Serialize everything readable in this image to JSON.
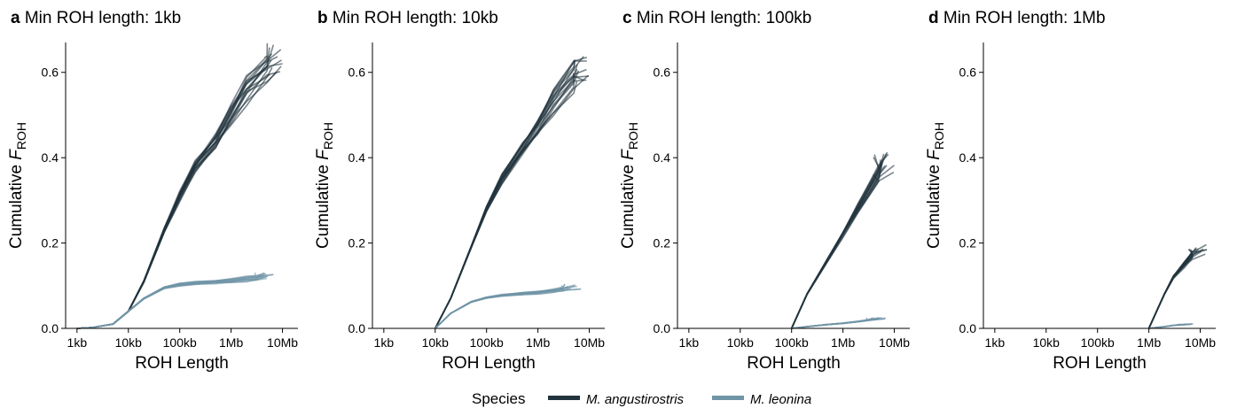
{
  "legend": {
    "title": "Species",
    "entries": [
      {
        "label": "M. angustirostris",
        "color": "#22343d"
      },
      {
        "label": "M. leonina",
        "color": "#6f95a6"
      }
    ]
  },
  "chart_data": [
    {
      "type": "line",
      "letter": "a",
      "title": "Min ROH length: 1kb",
      "xlabel": "ROH Length",
      "ylabel": "Cumulative F",
      "ylabel_sub": "ROH",
      "x_scale": "log10",
      "xlim": [
        600,
        20000000
      ],
      "ylim": [
        0,
        0.67
      ],
      "x_ticks": [
        1000,
        10000,
        100000,
        1000000,
        10000000
      ],
      "x_tick_labels": [
        "1kb",
        "10kb",
        "100kb",
        "1Mb",
        "10Mb"
      ],
      "y_ticks": [
        0.0,
        0.2,
        0.4,
        0.6
      ],
      "y_tick_labels": [
        "0.0",
        "0.2",
        "0.4",
        "0.6"
      ],
      "series": [
        {
          "species": "M. angustirostris",
          "color": "#22343d",
          "x": [
            1000,
            2000,
            5000,
            10000,
            20000,
            50000,
            100000,
            200000,
            500000,
            1000000,
            2000000,
            5000000,
            7000000
          ],
          "y": [
            0.0,
            0.002,
            0.01,
            0.04,
            0.11,
            0.23,
            0.31,
            0.38,
            0.44,
            0.5,
            0.56,
            0.61,
            0.63
          ],
          "replicates": 16
        },
        {
          "species": "M. leonina",
          "color": "#6f95a6",
          "x": [
            1000,
            2000,
            5000,
            10000,
            20000,
            50000,
            100000,
            200000,
            500000,
            1000000,
            2000000,
            3000000,
            5000000
          ],
          "y": [
            0.0,
            0.002,
            0.01,
            0.04,
            0.07,
            0.095,
            0.102,
            0.106,
            0.109,
            0.111,
            0.115,
            0.118,
            0.125
          ],
          "replicates": 12
        }
      ]
    },
    {
      "type": "line",
      "letter": "b",
      "title": "Min ROH length: 10kb",
      "xlabel": "ROH Length",
      "ylabel": "Cumulative F",
      "ylabel_sub": "ROH",
      "x_scale": "log10",
      "xlim": [
        600,
        20000000
      ],
      "ylim": [
        0,
        0.67
      ],
      "x_ticks": [
        1000,
        10000,
        100000,
        1000000,
        10000000
      ],
      "x_tick_labels": [
        "1kb",
        "10kb",
        "100kb",
        "1Mb",
        "10Mb"
      ],
      "y_ticks": [
        0.0,
        0.2,
        0.4,
        0.6
      ],
      "y_tick_labels": [
        "0.0",
        "0.2",
        "0.4",
        "0.6"
      ],
      "series": [
        {
          "species": "M. angustirostris",
          "color": "#22343d",
          "x": [
            10000,
            20000,
            50000,
            100000,
            200000,
            500000,
            1000000,
            2000000,
            5000000,
            7000000
          ],
          "y": [
            0.0,
            0.07,
            0.19,
            0.28,
            0.35,
            0.42,
            0.47,
            0.53,
            0.59,
            0.605
          ],
          "replicates": 16
        },
        {
          "species": "M. leonina",
          "color": "#6f95a6",
          "x": [
            10000,
            20000,
            50000,
            100000,
            200000,
            500000,
            1000000,
            2000000,
            3000000,
            5000000
          ],
          "y": [
            0.0,
            0.035,
            0.062,
            0.072,
            0.077,
            0.081,
            0.084,
            0.088,
            0.091,
            0.097
          ],
          "replicates": 12
        }
      ]
    },
    {
      "type": "line",
      "letter": "c",
      "title": "Min ROH length: 100kb",
      "xlabel": "ROH Length",
      "ylabel": "Cumulative F",
      "ylabel_sub": "ROH",
      "x_scale": "log10",
      "xlim": [
        600,
        20000000
      ],
      "ylim": [
        0,
        0.67
      ],
      "x_ticks": [
        1000,
        10000,
        100000,
        1000000,
        10000000
      ],
      "x_tick_labels": [
        "1kb",
        "10kb",
        "100kb",
        "1Mb",
        "10Mb"
      ],
      "y_ticks": [
        0.0,
        0.2,
        0.4,
        0.6
      ],
      "y_tick_labels": [
        "0.0",
        "0.2",
        "0.4",
        "0.6"
      ],
      "series": [
        {
          "species": "M. angustirostris",
          "color": "#22343d",
          "x": [
            100000,
            200000,
            500000,
            1000000,
            2000000,
            5000000,
            7000000
          ],
          "y": [
            0.0,
            0.08,
            0.16,
            0.22,
            0.28,
            0.36,
            0.39
          ],
          "replicates": 16
        },
        {
          "species": "M. leonina",
          "color": "#6f95a6",
          "x": [
            100000,
            200000,
            500000,
            1000000,
            2000000,
            3000000,
            5000000
          ],
          "y": [
            0.0,
            0.004,
            0.009,
            0.012,
            0.016,
            0.019,
            0.024
          ],
          "replicates": 12
        }
      ]
    },
    {
      "type": "line",
      "letter": "d",
      "title": "Min ROH length: 1Mb",
      "xlabel": "ROH Length",
      "ylabel": "Cumulative F",
      "ylabel_sub": "ROH",
      "x_scale": "log10",
      "xlim": [
        600,
        20000000
      ],
      "ylim": [
        0,
        0.67
      ],
      "x_ticks": [
        1000,
        10000,
        100000,
        1000000,
        10000000
      ],
      "x_tick_labels": [
        "1kb",
        "10kb",
        "100kb",
        "1Mb",
        "10Mb"
      ],
      "y_ticks": [
        0.0,
        0.2,
        0.4,
        0.6
      ],
      "y_tick_labels": [
        "0.0",
        "0.2",
        "0.4",
        "0.6"
      ],
      "series": [
        {
          "species": "M. angustirostris",
          "color": "#22343d",
          "x": [
            1000000,
            2000000,
            3000000,
            5000000,
            7000000,
            10000000
          ],
          "y": [
            0.0,
            0.08,
            0.12,
            0.15,
            0.17,
            0.18
          ],
          "replicates": 16
        },
        {
          "species": "M. leonina",
          "color": "#6f95a6",
          "x": [
            1000000,
            2000000,
            3000000,
            5000000
          ],
          "y": [
            0.0,
            0.004,
            0.007,
            0.01
          ],
          "replicates": 8
        }
      ]
    }
  ]
}
